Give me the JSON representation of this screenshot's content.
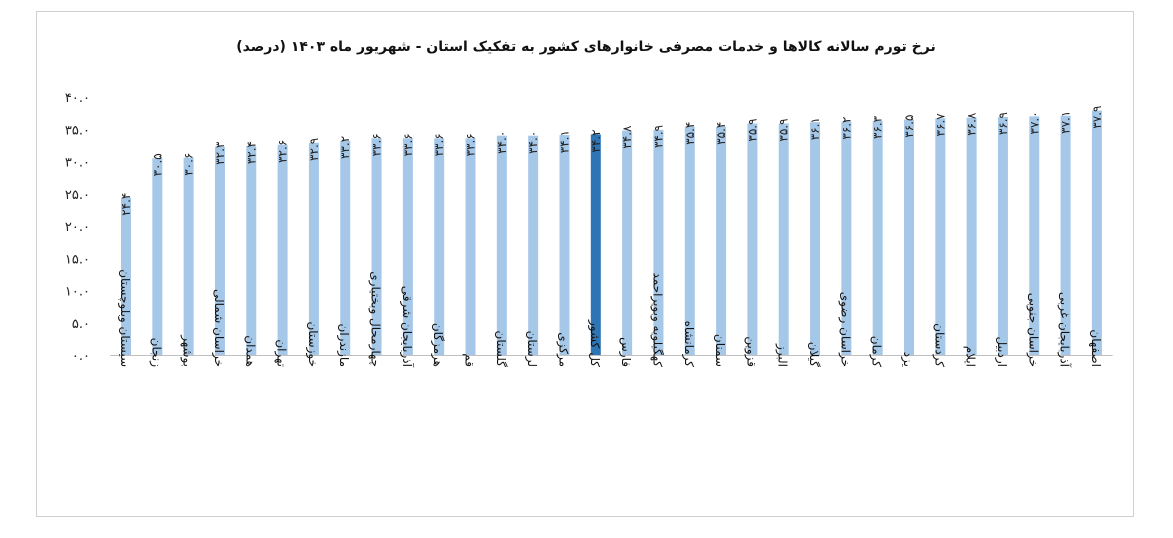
{
  "chart_data": {
    "type": "bar",
    "title": "نرخ تورم سالانه کالاها و خدمات مصرفی خانوارهای کشور به تفکیک استان - شهریور ماه ۱۴۰۳ (درصد)",
    "categories": [
      "سیستان وبلوچستان",
      "زنجان",
      "بوشهر",
      "خراسان شمالی",
      "همدان",
      "تهران",
      "خوزستان",
      "مازندران",
      "چهارمحال وبختیاری",
      "آذربایجان شرقی",
      "هرمزگان",
      "قم",
      "گلستان",
      "لرستان",
      "مرکزی",
      "کل کشور",
      "فارس",
      "کهگیلویه وبویراحمد",
      "کرمانشاه",
      "سمنان",
      "قزوین",
      "البرز",
      "گیلان",
      "خراسان رضوی",
      "کرمان",
      "یزد",
      "کردستان",
      "ایلام",
      "اردبیل",
      "خراسان جنوبی",
      "آذربایجان غربی",
      "اصفهان"
    ],
    "values": [
      24.4,
      30.5,
      30.6,
      32.3,
      32.4,
      32.6,
      32.9,
      33.2,
      33.6,
      33.6,
      33.6,
      33.6,
      34.0,
      34.0,
      34.1,
      34.2,
      34.8,
      34.9,
      35.4,
      35.4,
      35.9,
      35.9,
      36.1,
      36.2,
      36.3,
      36.5,
      36.7,
      36.8,
      36.9,
      37.0,
      37.1,
      37.9
    ],
    "value_labels": [
      "۲۴.۴",
      "۳۰.۵",
      "۳۰.۶",
      "۳۲.۳",
      "۳۲.۴",
      "۳۲.۶",
      "۳۲.۹",
      "۳۳.۲",
      "۳۳.۶",
      "۳۳.۶",
      "۳۳.۶",
      "۳۳.۶",
      "۳۴.۰",
      "۳۴.۰",
      "۳۴.۱",
      "۳۴.۲",
      "۳۴.۸",
      "۳۴.۹",
      "۳۵.۴",
      "۳۵.۴",
      "۳۵.۹",
      "۳۵.۹",
      "۳۶.۱",
      "۳۶.۲",
      "۳۶.۳",
      "۳۶.۵",
      "۳۶.۷",
      "۳۶.۸",
      "۳۶.۹",
      "۳۷.۰",
      "۳۷.۱",
      "۳۷.۹"
    ],
    "highlight_category": "کل کشور",
    "ylim": [
      0,
      40
    ],
    "yticks": [
      0,
      5,
      10,
      15,
      20,
      25,
      30,
      35,
      40
    ],
    "ytick_labels": [
      "۰.۰",
      "۵.۰",
      "۱۰.۰",
      "۱۵.۰",
      "۲۰.۰",
      "۲۵.۰",
      "۳۰.۰",
      "۳۵.۰",
      "۴۰.۰"
    ],
    "grid": false,
    "legend": "none",
    "colors": {
      "bar": "#a6c8e8",
      "highlight": "#2e75b6"
    }
  }
}
